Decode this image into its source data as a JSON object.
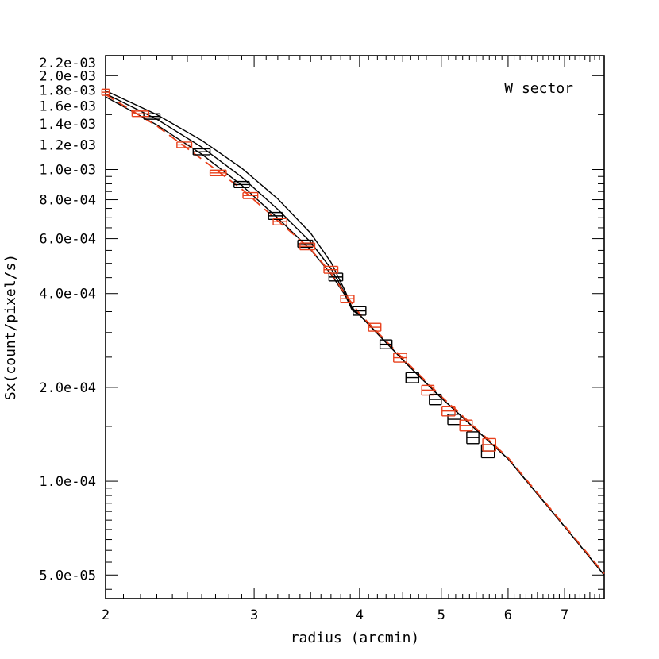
{
  "chart_data": {
    "type": "line",
    "title": "",
    "annotation": "W sector",
    "xlabel": "radius (arcmin)",
    "ylabel": "Sx(count/pixel/s)",
    "xscale": "log",
    "yscale": "log",
    "xlim": [
      2.0,
      7.8
    ],
    "ylim": [
      4.2e-05,
      0.00232
    ],
    "x_ticks": [
      2,
      3,
      4,
      5,
      6,
      7
    ],
    "x_tick_labels": [
      "2",
      "3",
      "4",
      "5",
      "6",
      "7"
    ],
    "y_ticks": [
      5e-05,
      0.0001,
      0.0002,
      0.0004,
      0.0006,
      0.0008,
      0.001,
      0.0012,
      0.0014,
      0.0016,
      0.0018,
      0.002,
      0.0022
    ],
    "y_tick_labels": [
      "5.0e-05",
      "1.0e-04",
      "2.0e-04",
      "4.0e-04",
      "6.0e-04",
      "8.0e-04",
      "1.0e-03",
      "1.2e-03",
      "1.4e-03",
      "1.6e-03",
      "1.8e-03",
      "2.0e-03",
      "2.2e-03"
    ],
    "series": [
      {
        "kind": "errorbar",
        "color": "#000000",
        "points": [
          {
            "x": 2.27,
            "xerr": 0.05,
            "y": 0.00148,
            "yerr": 3e-05
          },
          {
            "x": 2.6,
            "xerr": 0.06,
            "y": 0.00114,
            "yerr": 2.5e-05
          },
          {
            "x": 2.9,
            "xerr": 0.06,
            "y": 0.000895,
            "yerr": 2e-05
          },
          {
            "x": 3.18,
            "xerr": 0.06,
            "y": 0.00071,
            "yerr": 1.8e-05
          },
          {
            "x": 3.45,
            "xerr": 0.07,
            "y": 0.000578,
            "yerr": 1.5e-05
          },
          {
            "x": 3.75,
            "xerr": 0.07,
            "y": 0.000452,
            "yerr": 1.3e-05
          },
          {
            "x": 4.0,
            "xerr": 0.07,
            "y": 0.000352,
            "yerr": 1.1e-05
          },
          {
            "x": 4.3,
            "xerr": 0.07,
            "y": 0.000275,
            "yerr": 9e-06
          },
          {
            "x": 4.62,
            "xerr": 0.08,
            "y": 0.000215,
            "yerr": 8e-06
          },
          {
            "x": 4.92,
            "xerr": 0.08,
            "y": 0.000183,
            "yerr": 7e-06
          },
          {
            "x": 5.18,
            "xerr": 0.09,
            "y": 0.000158,
            "yerr": 6e-06
          },
          {
            "x": 5.45,
            "xerr": 0.09,
            "y": 0.000138,
            "yerr": 6e-06
          },
          {
            "x": 5.68,
            "xerr": 0.1,
            "y": 0.000125,
            "yerr": 6e-06
          }
        ]
      },
      {
        "kind": "errorbar",
        "color": "#e8401c",
        "points": [
          {
            "x": 2.0,
            "xerr": 0.02,
            "y": 0.00177,
            "yerr": 4e-05
          },
          {
            "x": 2.2,
            "xerr": 0.05,
            "y": 0.00151,
            "yerr": 3e-05
          },
          {
            "x": 2.48,
            "xerr": 0.05,
            "y": 0.0012,
            "yerr": 2.5e-05
          },
          {
            "x": 2.72,
            "xerr": 0.06,
            "y": 0.000975,
            "yerr": 2e-05
          },
          {
            "x": 2.97,
            "xerr": 0.06,
            "y": 0.000825,
            "yerr": 1.8e-05
          },
          {
            "x": 3.22,
            "xerr": 0.06,
            "y": 0.00068,
            "yerr": 1.6e-05
          },
          {
            "x": 3.47,
            "xerr": 0.07,
            "y": 0.000567,
            "yerr": 1.4e-05
          },
          {
            "x": 3.7,
            "xerr": 0.07,
            "y": 0.000477,
            "yerr": 1.2e-05
          },
          {
            "x": 3.87,
            "xerr": 0.07,
            "y": 0.000385,
            "yerr": 1e-05
          },
          {
            "x": 4.17,
            "xerr": 0.07,
            "y": 0.000312,
            "yerr": 9e-06
          },
          {
            "x": 4.47,
            "xerr": 0.08,
            "y": 0.000249,
            "yerr": 8e-06
          },
          {
            "x": 4.82,
            "xerr": 0.08,
            "y": 0.000196,
            "yerr": 7e-06
          },
          {
            "x": 5.1,
            "xerr": 0.09,
            "y": 0.000168,
            "yerr": 6e-06
          },
          {
            "x": 5.35,
            "xerr": 0.09,
            "y": 0.000151,
            "yerr": 6e-06
          },
          {
            "x": 5.7,
            "xerr": 0.1,
            "y": 0.000131,
            "yerr": 6e-06
          }
        ]
      },
      {
        "kind": "line",
        "style": "solid",
        "color": "#000000",
        "x": [
          2.0,
          2.3,
          2.6,
          2.9,
          3.2,
          3.5,
          3.7,
          3.85,
          3.92,
          4.0,
          4.5,
          5.0,
          6.0,
          7.0,
          7.8
        ],
        "y": [
          0.00179,
          0.0015,
          0.00124,
          0.00101,
          0.000805,
          0.000625,
          0.000504,
          0.000405,
          0.00036,
          0.000342,
          0.000245,
          0.000185,
          0.000118,
          7.15e-05,
          5e-05
        ]
      },
      {
        "kind": "line",
        "style": "solid",
        "color": "#000000",
        "x": [
          2.0,
          2.3,
          2.6,
          2.9,
          3.2,
          3.5,
          3.7,
          3.85,
          3.92,
          4.0,
          4.5,
          5.0,
          6.0,
          7.0,
          7.8
        ],
        "y": [
          0.00175,
          0.00145,
          0.00118,
          0.000945,
          0.000745,
          0.000585,
          0.000481,
          0.000398,
          0.000356,
          0.000342,
          0.000245,
          0.000185,
          0.000118,
          7.15e-05,
          5e-05
        ]
      },
      {
        "kind": "line",
        "style": "solid",
        "color": "#000000",
        "x": [
          2.0,
          2.3,
          2.6,
          2.9,
          3.2,
          3.5,
          3.7,
          3.85,
          3.92,
          4.0,
          4.5,
          5.0,
          6.0,
          7.0,
          7.8
        ],
        "y": [
          0.00171,
          0.00139,
          0.00112,
          0.00089,
          0.000698,
          0.000553,
          0.000462,
          0.000393,
          0.000354,
          0.000341,
          0.000245,
          0.000185,
          0.000118,
          7.15e-05,
          5e-05
        ]
      },
      {
        "kind": "line",
        "style": "dashed",
        "color": "#e8401c",
        "x": [
          2.0,
          2.3,
          2.6,
          2.9,
          3.2,
          3.5,
          3.7,
          3.85,
          4.0,
          4.5,
          5.0,
          6.0,
          7.0,
          7.8
        ],
        "y": [
          0.00174,
          0.00138,
          0.00108,
          0.000865,
          0.000685,
          0.000555,
          0.000465,
          0.000397,
          0.000345,
          0.000248,
          0.000187,
          0.000119,
          7.2e-05,
          5.05e-05
        ]
      }
    ]
  }
}
